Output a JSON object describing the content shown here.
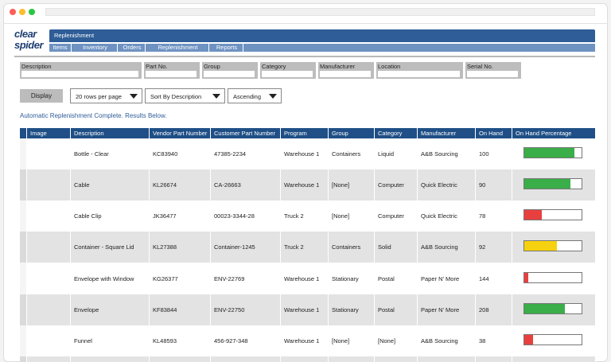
{
  "logo": {
    "lines": [
      "clear",
      "spider"
    ]
  },
  "nav": {
    "title": "Replenishment",
    "tabs": [
      "Items",
      "Inventory",
      "Orders",
      "Replenishment",
      "Reports"
    ]
  },
  "filters": [
    "Description",
    "Part No.",
    "Group",
    "Category",
    "Manufacturer",
    "Location",
    "Serial No."
  ],
  "display_button": "Display",
  "selects": [
    "20 rows per page",
    "Sort By Description",
    "Ascending"
  ],
  "message": "Automatic Replenishment Complete. Results Below.",
  "table": {
    "headers": [
      "Image",
      "Description",
      "Vendor Part Number",
      "Customer Part Number",
      "Program",
      "Group",
      "Category",
      "Manufacturer",
      "On Hand",
      "On Hand Percentage"
    ],
    "rows": [
      [
        "Bottle - Clear",
        "KC83940",
        "47385-2234",
        "Warehouse 1",
        "Containers",
        "Liquid",
        "A&B Sourcing",
        100
      ],
      [
        "Cable",
        "KL26674",
        "CA-26663",
        "Warehouse 1",
        "[None]",
        "Computer",
        "Quick Electric",
        90
      ],
      [
        "Cable Clip",
        "JK36477",
        "00023-3344-28",
        "Truck 2",
        "[None]",
        "Computer",
        "Quick Electric",
        78
      ],
      [
        "Container - Square Lid",
        "KL27388",
        "Container-1245",
        "Truck 2",
        "Containers",
        "Solid",
        "A&B Sourcing",
        92
      ],
      [
        "Envelope with Window",
        "KG26377",
        "ENV-22769",
        "Warehouse 1",
        "Stationary",
        "Postal",
        "Paper N' More",
        144
      ],
      [
        "Envelope",
        "KF83844",
        "ENV-22750",
        "Warehouse 1",
        "Stationary",
        "Postal",
        "Paper N' More",
        208
      ],
      [
        "Funnel",
        "KL48593",
        "456-927-348",
        "Warehouse 1",
        "[None]",
        "[None]",
        "A&B Sourcing",
        38
      ]
    ],
    "bar_range": [
      0,
      100
    ],
    "bars": [
      {
        "value": 88,
        "color": "#3aae49"
      },
      {
        "value": 80,
        "color": "#3aae49"
      },
      {
        "value": 30,
        "color": "#e8403f"
      },
      {
        "value": 57,
        "color": "#f6d10f"
      },
      {
        "value": 7,
        "color": "#e8403f"
      },
      {
        "value": 71,
        "color": "#3aae49"
      },
      {
        "value": 15,
        "color": "#e8403f"
      }
    ]
  }
}
